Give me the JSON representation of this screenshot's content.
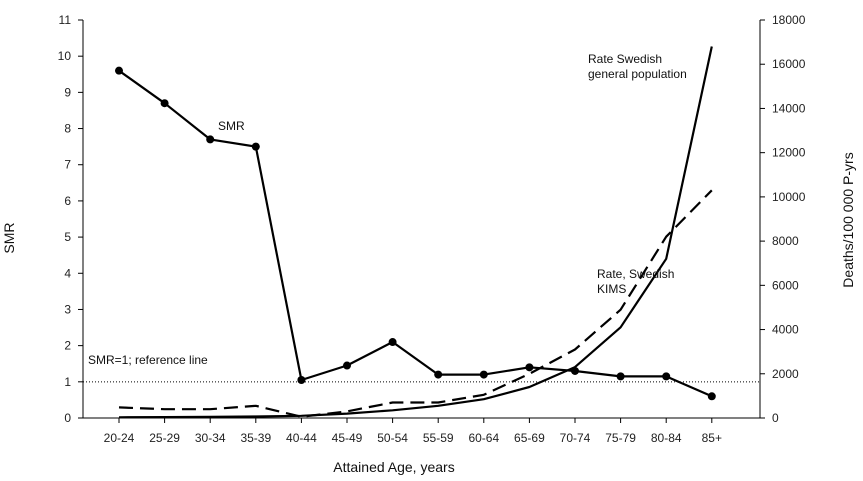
{
  "chart_data": {
    "type": "line",
    "categories": [
      "20-24",
      "25-29",
      "30-34",
      "35-39",
      "40-44",
      "45-49",
      "50-54",
      "55-59",
      "60-64",
      "65-69",
      "70-74",
      "75-79",
      "80-84",
      "85+"
    ],
    "xlabel": "Attained Age, years",
    "ylabel": "SMR",
    "y2label": "Deaths/100 000 P-yrs",
    "ylim": [
      0,
      11
    ],
    "y2lim": [
      0,
      18000
    ],
    "yticks": [
      "0",
      "1",
      "2",
      "3",
      "4",
      "5",
      "6",
      "7",
      "8",
      "9",
      "10",
      "11"
    ],
    "y2ticks": [
      "0",
      "2000",
      "4000",
      "6000",
      "8000",
      "10000",
      "12000",
      "14000",
      "16000",
      "18000"
    ],
    "grid": false,
    "series": [
      {
        "name": "SMR",
        "axis": "left",
        "style": "solid-markers",
        "values": [
          9.6,
          8.7,
          7.7,
          7.5,
          1.05,
          1.45,
          2.1,
          1.2,
          1.2,
          1.4,
          1.3,
          1.15,
          1.15,
          0.6
        ]
      },
      {
        "name": "Rate Swedish general population",
        "axis": "right",
        "style": "solid",
        "values": [
          30,
          40,
          50,
          70,
          100,
          200,
          350,
          550,
          850,
          1400,
          2300,
          4100,
          7200,
          16800
        ]
      },
      {
        "name": "Rate, Swedish KIMS",
        "axis": "right",
        "style": "dashed",
        "values": [
          480,
          400,
          400,
          550,
          60,
          300,
          700,
          700,
          1050,
          2000,
          3100,
          4900,
          8200,
          10300
        ]
      }
    ],
    "reference_line": {
      "y": 1,
      "axis": "left",
      "label": "SMR=1; reference line"
    },
    "annotations": [
      {
        "lines": [
          "SMR"
        ]
      },
      {
        "lines": [
          "Rate Swedish",
          "general population"
        ]
      },
      {
        "lines": [
          "Rate, Swedish",
          "KIMS"
        ]
      }
    ]
  }
}
